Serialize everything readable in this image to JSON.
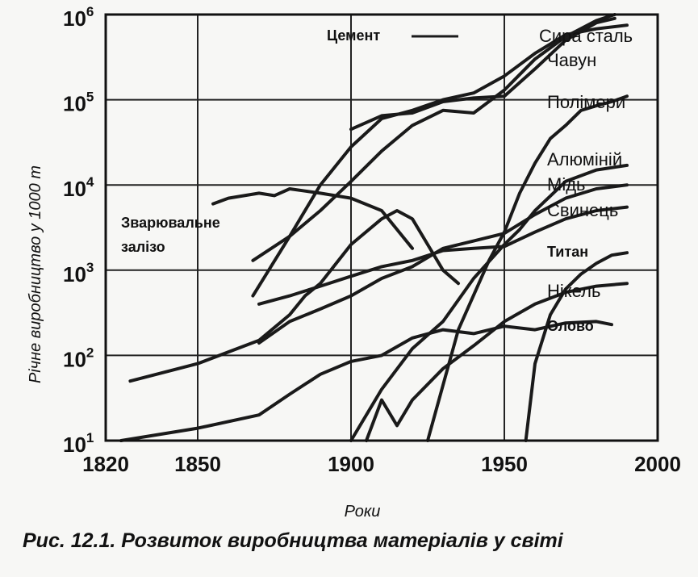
{
  "caption": "Рис. 12.1. Розвиток виробництва матеріалів у світі",
  "chart_data": {
    "type": "line",
    "title": "",
    "xlabel": "Роки",
    "ylabel": "Річне виробництво у 1000 т",
    "x_ticks": [
      1820,
      1850,
      1900,
      1950,
      2000
    ],
    "x_tick_labels": [
      "1820",
      "1850",
      "1900",
      "1950",
      "2000"
    ],
    "y_ticks": [
      1,
      2,
      3,
      4,
      5,
      6
    ],
    "y_tick_base": "10",
    "y_tick_exponents": [
      "1",
      "2",
      "3",
      "4",
      "5",
      "6"
    ],
    "xlim": [
      1820,
      2000
    ],
    "ylim": [
      10,
      1000000
    ],
    "yscale": "log",
    "grid": true,
    "series": [
      {
        "name": "Цемент",
        "x": [
          1868,
          1880,
          1890,
          1900,
          1910,
          1920,
          1930,
          1940,
          1950,
          1960,
          1970,
          1980,
          1986
        ],
        "y": [
          1300,
          2500,
          5000,
          11000,
          25000,
          50000,
          75000,
          70000,
          130000,
          300000,
          550000,
          850000,
          1000000
        ]
      },
      {
        "name": "Сира сталь",
        "x": [
          1868,
          1880,
          1890,
          1900,
          1910,
          1920,
          1930,
          1940,
          1950,
          1960,
          1970,
          1980,
          1990
        ],
        "y": [
          500,
          2500,
          10000,
          28000,
          60000,
          75000,
          100000,
          120000,
          190000,
          350000,
          580000,
          680000,
          750000
        ]
      },
      {
        "name": "Чавун",
        "x": [
          1900,
          1910,
          1920,
          1930,
          1940,
          1950,
          1960,
          1970,
          1980,
          1986
        ],
        "y": [
          45000,
          65000,
          70000,
          95000,
          105000,
          110000,
          230000,
          500000,
          800000,
          900000
        ]
      },
      {
        "name": "Полімери",
        "x": [
          1925,
          1935,
          1945,
          1950,
          1955,
          1960,
          1965,
          1970,
          1975,
          1980,
          1985,
          1990
        ],
        "y": [
          10,
          200,
          1300,
          2800,
          8000,
          18000,
          35000,
          50000,
          75000,
          85000,
          95000,
          110000
        ]
      },
      {
        "name": "Алюміній",
        "x": [
          1900,
          1910,
          1920,
          1930,
          1940,
          1950,
          1955,
          1960,
          1970,
          1980,
          1990
        ],
        "y": [
          10,
          40,
          120,
          250,
          800,
          2000,
          3000,
          5000,
          11000,
          15000,
          17000
        ]
      },
      {
        "name": "Мідь",
        "x": [
          1870,
          1880,
          1890,
          1900,
          1910,
          1920,
          1930,
          1940,
          1950,
          1960,
          1970,
          1980,
          1990
        ],
        "y": [
          140,
          250,
          350,
          500,
          800,
          1100,
          1800,
          2200,
          2700,
          4500,
          7000,
          9000,
          10000
        ]
      },
      {
        "name": "Свинець",
        "x": [
          1870,
          1880,
          1890,
          1900,
          1910,
          1920,
          1930,
          1940,
          1950,
          1960,
          1970,
          1980,
          1990
        ],
        "y": [
          400,
          500,
          650,
          850,
          1100,
          1300,
          1700,
          1800,
          1900,
          2800,
          4000,
          5000,
          5500
        ]
      },
      {
        "name": "Титан",
        "x": [
          1957,
          1960,
          1965,
          1970,
          1975,
          1980,
          1985,
          1990
        ],
        "y": [
          10,
          80,
          300,
          600,
          900,
          1200,
          1500,
          1600
        ]
      },
      {
        "name": "Нікель",
        "x": [
          1905,
          1910,
          1915,
          1920,
          1930,
          1940,
          1950,
          1960,
          1970,
          1980,
          1990
        ],
        "y": [
          10,
          30,
          15,
          30,
          70,
          130,
          250,
          400,
          550,
          650,
          700
        ]
      },
      {
        "name": "Олово",
        "x": [
          1825,
          1850,
          1870,
          1880,
          1890,
          1900,
          1910,
          1920,
          1930,
          1940,
          1950,
          1960,
          1970,
          1980,
          1985
        ],
        "y": [
          10,
          14,
          20,
          35,
          60,
          85,
          100,
          160,
          200,
          180,
          220,
          200,
          240,
          250,
          230
        ]
      },
      {
        "name": "Зварювальне залізо",
        "x": [
          1828,
          1850,
          1870,
          1880,
          1885,
          1890,
          1900,
          1910,
          1915,
          1920,
          1925,
          1930,
          1935
        ],
        "y": [
          50,
          80,
          150,
          300,
          500,
          700,
          2000,
          4000,
          5000,
          4000,
          2000,
          1000,
          700
        ]
      },
      {
        "name": "",
        "x": [
          1855,
          1860,
          1870,
          1875,
          1880,
          1885,
          1890,
          1900,
          1910,
          1915,
          1920
        ],
        "y": [
          6000,
          7000,
          8000,
          7500,
          9000,
          8500,
          8000,
          7000,
          5000,
          3000,
          1800
        ]
      }
    ]
  }
}
